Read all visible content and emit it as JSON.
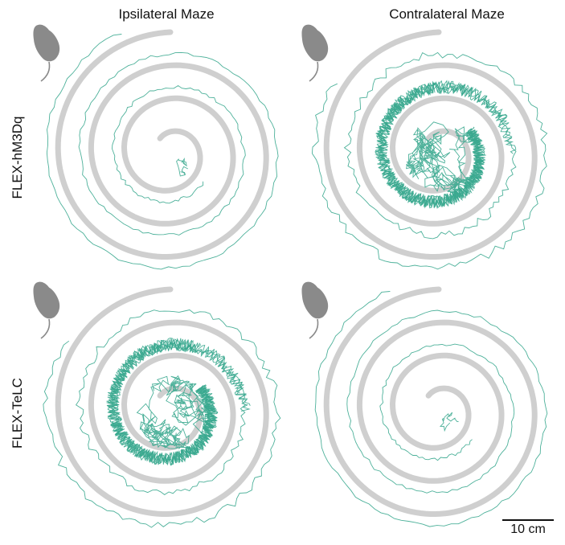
{
  "columns": [
    "Ipsilateral Maze",
    "Contralateral Maze"
  ],
  "rows": [
    "FLEX-hM3Dq",
    "FLEX-TeLC"
  ],
  "scale_bar": {
    "label": "10 cm",
    "length_cm": 10
  },
  "colors": {
    "maze": "#cfcfcf",
    "track": "#3aa88f",
    "mouse": "#8a8a8a"
  },
  "panels": [
    {
      "row": 0,
      "col": 0,
      "exploration": "sparse-center"
    },
    {
      "row": 0,
      "col": 1,
      "exploration": "dense-center"
    },
    {
      "row": 1,
      "col": 0,
      "exploration": "dense-center"
    },
    {
      "row": 1,
      "col": 1,
      "exploration": "sparse-center"
    }
  ]
}
